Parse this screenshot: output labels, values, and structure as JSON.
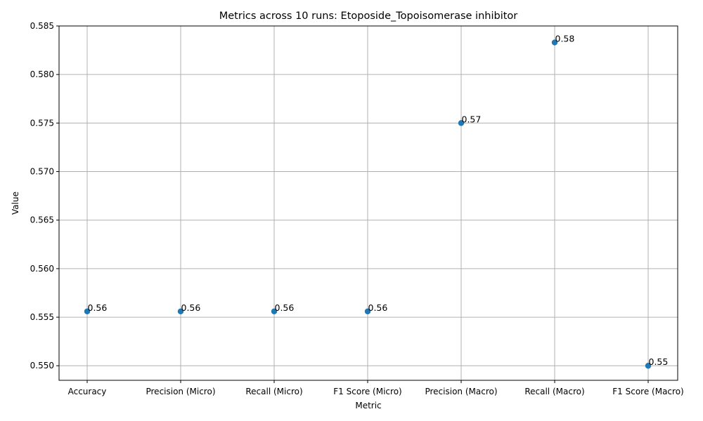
{
  "chart_data": {
    "type": "scatter",
    "title": "Metrics across 10 runs: Etoposide_Topoisomerase inhibitor",
    "xlabel": "Metric",
    "ylabel": "Value",
    "categories": [
      "Accuracy",
      "Precision (Micro)",
      "Recall (Micro)",
      "F1 Score (Micro)",
      "Precision (Macro)",
      "Recall (Macro)",
      "F1 Score (Macro)"
    ],
    "values": [
      0.5556,
      0.5556,
      0.5556,
      0.5556,
      0.575,
      0.5833,
      0.55
    ],
    "data_labels": [
      "0.56",
      "0.56",
      "0.56",
      "0.56",
      "0.57",
      "0.58",
      "0.55"
    ],
    "ylim": [
      0.5485,
      0.585
    ],
    "yticks": [
      0.55,
      0.555,
      0.56,
      0.565,
      0.57,
      0.575,
      0.58,
      0.585
    ],
    "ytick_labels": [
      "0.550",
      "0.555",
      "0.560",
      "0.565",
      "0.570",
      "0.575",
      "0.580",
      "0.585"
    ],
    "grid": true,
    "colors": {
      "marker": "#1f77b4",
      "grid": "#b0b0b0",
      "axis": "#000000"
    }
  }
}
